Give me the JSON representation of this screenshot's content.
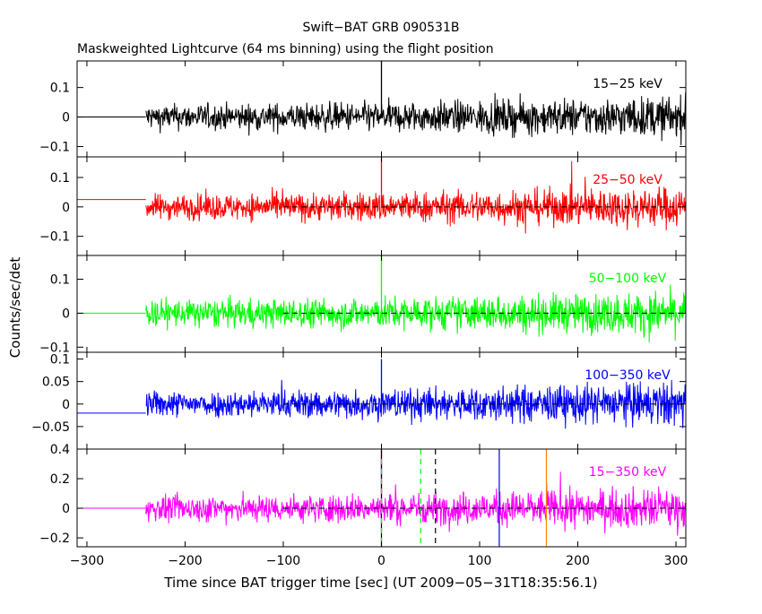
{
  "chart_data": {
    "type": "line",
    "title": "Swift−BAT GRB 090531B",
    "subtitle": "Maskweighted Lightcurve (64 ms binning) using the flight position",
    "xlabel": "Time since BAT trigger time [sec] (UT 2009−05−31T18:35:56.1)",
    "ylabel": "Counts/sec/det",
    "xlim": [
      -310,
      310
    ],
    "x_ticks": [
      -300,
      -200,
      -100,
      0,
      100,
      200,
      300
    ],
    "x_tick_labels": [
      "−300",
      "−200",
      "−100",
      "0",
      "100",
      "200",
      "300"
    ],
    "data_start": -240,
    "pre_data_level_note": "flat line from -310 to -240",
    "dashed_zero_from": -100,
    "panels": [
      {
        "band": "15−25 keV",
        "color": "#000000",
        "ylim": [
          -0.135,
          0.19
        ],
        "yticks": [
          -0.1,
          0,
          0.1
        ],
        "ytick_labels": [
          "−0.1",
          "0",
          "0.1"
        ],
        "noise_early": 0.03,
        "noise_late": 0.05,
        "peak": 0.19,
        "pre_level": 0.0,
        "dashed_zero": false
      },
      {
        "band": "25−50 keV",
        "color": "#ff0000",
        "ylim": [
          -0.165,
          0.17
        ],
        "yticks": [
          -0.1,
          0,
          0.1
        ],
        "ytick_labels": [
          "−0.1",
          "0",
          "0.1"
        ],
        "noise_early": 0.03,
        "noise_late": 0.05,
        "peak": 0.17,
        "pre_level": 0.025,
        "dashed_zero": true
      },
      {
        "band": "50−100 keV",
        "color": "#00ff00",
        "ylim": [
          -0.115,
          0.17
        ],
        "yticks": [
          -0.1,
          0,
          0.1
        ],
        "ytick_labels": [
          "−0.1",
          "0",
          "0.1"
        ],
        "noise_early": 0.028,
        "noise_late": 0.045,
        "peak": 0.17,
        "pre_level": 0.0,
        "dashed_zero": true
      },
      {
        "band": "100−350 keV",
        "color": "#0000ff",
        "ylim": [
          -0.1,
          0.115
        ],
        "yticks": [
          -0.05,
          0,
          0.05,
          0.1
        ],
        "ytick_labels": [
          "−0.05",
          "0",
          "0.05",
          "0.1"
        ],
        "noise_early": 0.02,
        "noise_late": 0.035,
        "peak": 0.1,
        "pre_level": -0.02,
        "dashed_zero": true
      },
      {
        "band": "15−350 keV",
        "color": "#ff00ff",
        "ylim": [
          -0.26,
          0.4
        ],
        "yticks": [
          -0.2,
          0,
          0.2,
          0.4
        ],
        "ytick_labels": [
          "−0.2",
          "0",
          "0.2",
          "0.4"
        ],
        "noise_early": 0.06,
        "noise_late": 0.1,
        "peak": 0.4,
        "pre_level": 0.0,
        "dashed_zero": true
      }
    ],
    "markers": [
      {
        "x": 0,
        "color": "#000000",
        "style": "solid"
      },
      {
        "x": 0,
        "color": "#00ff00",
        "style": "dashed"
      },
      {
        "x": 40,
        "color": "#00ff00",
        "style": "dashed"
      },
      {
        "x": 55,
        "color": "#000000",
        "style": "dashed"
      },
      {
        "x": 120,
        "color": "#0000ff",
        "style": "solid"
      },
      {
        "x": 168,
        "color": "#ff8000",
        "style": "solid"
      }
    ]
  }
}
